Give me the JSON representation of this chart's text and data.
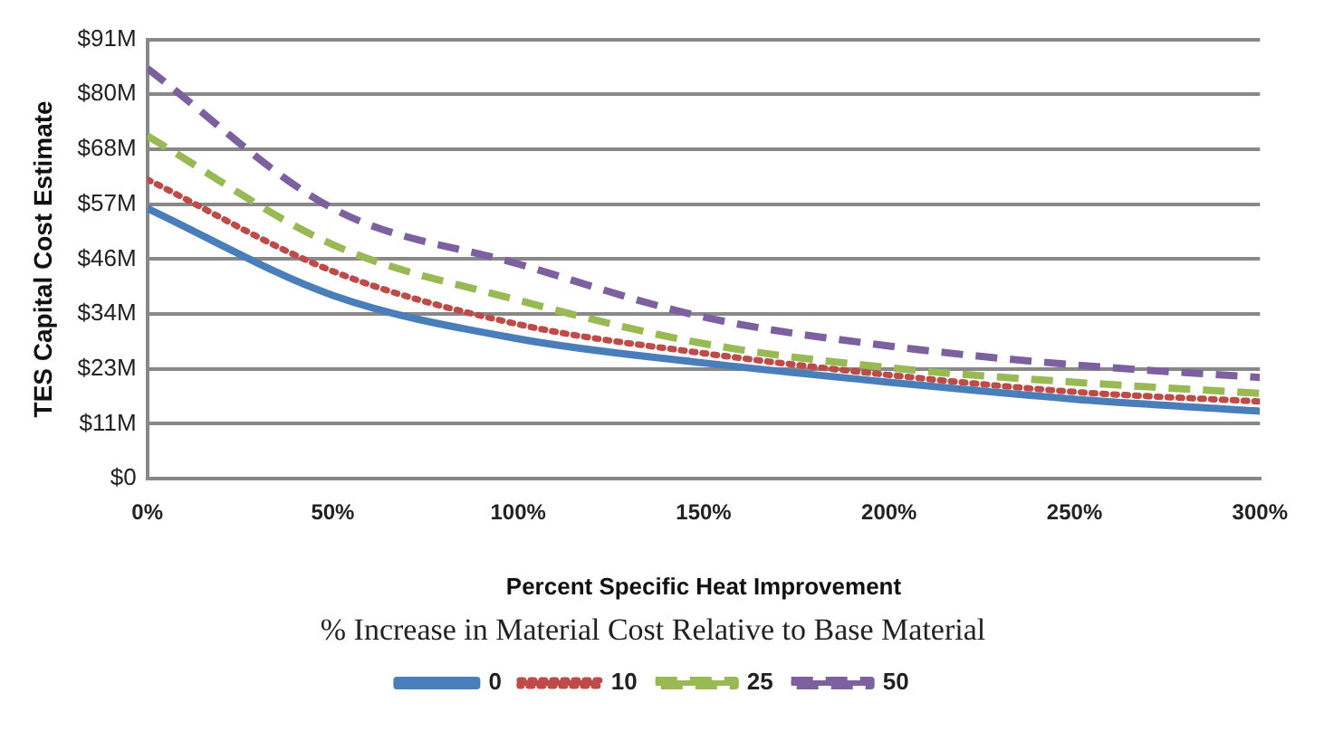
{
  "chart_data": {
    "type": "line",
    "xlabel": "Percent Specific Heat Improvement",
    "ylabel": "TES Capital Cost Estimate",
    "legend_title": "% Increase in Material Cost Relative to Base Material",
    "x": [
      0,
      50,
      100,
      150,
      200,
      250,
      300
    ],
    "series": [
      {
        "name": "0",
        "color": "#4a7ebb",
        "line_style": "solid",
        "values": [
          56,
          38,
          29,
          24,
          20,
          16.5,
          14
        ]
      },
      {
        "name": "10",
        "color": "#be4b48",
        "line_style": "dotted",
        "values": [
          62,
          43,
          32,
          26,
          21.5,
          18,
          16
        ]
      },
      {
        "name": "25",
        "color": "#98b954",
        "line_style": "dashed",
        "values": [
          71,
          48.5,
          37,
          28,
          23,
          20,
          17.7
        ]
      },
      {
        "name": "50",
        "color": "#7d60a0",
        "line_style": "dashed",
        "values": [
          85,
          56,
          44.5,
          33.5,
          27.5,
          23.6,
          21
        ]
      }
    ],
    "xlim": [
      0,
      300
    ],
    "xticks": [
      {
        "value": 0,
        "label": "0%"
      },
      {
        "value": 50,
        "label": "50%"
      },
      {
        "value": 100,
        "label": "100%"
      },
      {
        "value": 150,
        "label": "150%"
      },
      {
        "value": 200,
        "label": "200%"
      },
      {
        "value": 250,
        "label": "250%"
      },
      {
        "value": 300,
        "label": "300%"
      }
    ],
    "ylim": [
      0,
      91
    ],
    "yticks": [
      {
        "value": 0,
        "label": "$0"
      },
      {
        "value": 11.375,
        "label": "$11M"
      },
      {
        "value": 22.75,
        "label": "$23M"
      },
      {
        "value": 34.125,
        "label": "$34M"
      },
      {
        "value": 45.5,
        "label": "$46M"
      },
      {
        "value": 56.875,
        "label": "$57M"
      },
      {
        "value": 68.25,
        "label": "$68M"
      },
      {
        "value": 79.625,
        "label": "$80M"
      },
      {
        "value": 91,
        "label": "$91M"
      }
    ],
    "grid": "y",
    "legend": "bottom",
    "marker": "none"
  }
}
